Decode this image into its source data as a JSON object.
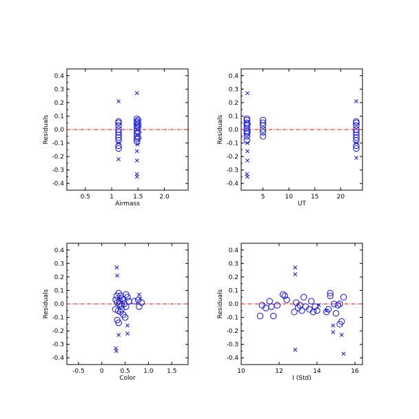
{
  "chart_data": [
    {
      "type": "scatter",
      "xlabel": "Airmass",
      "ylabel": "Residuals",
      "xlim": [
        0.15,
        2.45
      ],
      "ylim": [
        -0.45,
        0.45
      ],
      "xticks": [
        0.5,
        1.0,
        1.5,
        2.0
      ],
      "xticklabels": [
        "0.5",
        "1",
        "1.5",
        "2.0"
      ],
      "yticks": [
        -0.4,
        -0.3,
        -0.2,
        -0.1,
        0.0,
        0.1,
        0.2,
        0.3,
        0.4
      ],
      "yticklabels": [
        "-0.4",
        "-0.3",
        "-0.2",
        "-0.1",
        "0.0",
        "0.1",
        "0.2",
        "0.3",
        "0.4"
      ],
      "zero_line": 0,
      "series": [
        {
          "marker": "circle",
          "points": [
            [
              1.13,
              0.06
            ],
            [
              1.13,
              0.05
            ],
            [
              1.13,
              0.03
            ],
            [
              1.13,
              0.0
            ],
            [
              1.13,
              -0.02
            ],
            [
              1.13,
              -0.04
            ],
            [
              1.13,
              -0.06
            ],
            [
              1.13,
              -0.08
            ],
            [
              1.13,
              -0.12
            ],
            [
              1.13,
              -0.14
            ],
            [
              1.48,
              0.08
            ],
            [
              1.48,
              0.06
            ],
            [
              1.48,
              0.05
            ],
            [
              1.48,
              0.03
            ],
            [
              1.48,
              0.01
            ],
            [
              1.48,
              -0.01
            ],
            [
              1.48,
              -0.03
            ],
            [
              1.48,
              -0.05
            ],
            [
              1.48,
              -0.07
            ],
            [
              1.48,
              -0.09
            ],
            [
              1.5,
              0.07
            ],
            [
              1.5,
              0.04
            ],
            [
              1.5,
              0.02
            ],
            [
              1.5,
              -0.02
            ],
            [
              1.5,
              -0.06
            ]
          ]
        },
        {
          "marker": "cross",
          "points": [
            [
              1.13,
              0.21
            ],
            [
              1.13,
              -0.22
            ],
            [
              1.13,
              -0.1
            ],
            [
              1.48,
              0.27
            ],
            [
              1.48,
              -0.16
            ],
            [
              1.48,
              -0.23
            ],
            [
              1.48,
              -0.33
            ],
            [
              1.48,
              -0.35
            ],
            [
              1.49,
              -0.11
            ]
          ]
        }
      ]
    },
    {
      "type": "scatter",
      "xlabel": "UT",
      "ylabel": "Residuals",
      "xlim": [
        0.8,
        24.2
      ],
      "ylim": [
        -0.45,
        0.45
      ],
      "xticks": [
        5,
        10,
        15,
        20
      ],
      "xticklabels": [
        "5",
        "10",
        "15",
        "20"
      ],
      "yticks": [
        -0.4,
        -0.3,
        -0.2,
        -0.1,
        0.0,
        0.1,
        0.2,
        0.3,
        0.4
      ],
      "yticklabels": [
        "-0.4",
        "-0.3",
        "-0.2",
        "-0.1",
        "0.0",
        "0.1",
        "0.2",
        "0.3",
        "0.4"
      ],
      "zero_line": 0,
      "series": [
        {
          "marker": "circle",
          "points": [
            [
              1.9,
              0.08
            ],
            [
              1.9,
              0.07
            ],
            [
              1.9,
              0.05
            ],
            [
              1.9,
              0.03
            ],
            [
              1.9,
              0.01
            ],
            [
              1.9,
              -0.01
            ],
            [
              1.9,
              -0.03
            ],
            [
              1.9,
              -0.05
            ],
            [
              1.9,
              -0.08
            ],
            [
              2.0,
              0.04
            ],
            [
              2.0,
              -0.02
            ],
            [
              5.0,
              0.07
            ],
            [
              5.0,
              0.05
            ],
            [
              5.0,
              0.03
            ],
            [
              5.0,
              0.0
            ],
            [
              5.0,
              -0.02
            ],
            [
              5.0,
              -0.05
            ],
            [
              23.0,
              0.06
            ],
            [
              23.0,
              0.05
            ],
            [
              23.0,
              0.03
            ],
            [
              23.0,
              0.0
            ],
            [
              23.0,
              -0.02
            ],
            [
              23.0,
              -0.04
            ],
            [
              23.0,
              -0.06
            ],
            [
              23.0,
              -0.08
            ],
            [
              23.0,
              -0.12
            ],
            [
              23.0,
              -0.14
            ]
          ]
        },
        {
          "marker": "cross",
          "points": [
            [
              2.0,
              0.27
            ],
            [
              2.0,
              -0.1
            ],
            [
              2.0,
              -0.16
            ],
            [
              2.0,
              -0.23
            ],
            [
              1.9,
              -0.33
            ],
            [
              2.0,
              -0.35
            ],
            [
              23.0,
              0.21
            ],
            [
              23.0,
              -0.21
            ],
            [
              23.0,
              -0.1
            ]
          ]
        }
      ]
    },
    {
      "type": "scatter",
      "xlabel": "Color",
      "ylabel": "Residuals",
      "xlim": [
        -0.75,
        1.85
      ],
      "ylim": [
        -0.45,
        0.45
      ],
      "xticks": [
        -0.5,
        0.0,
        0.5,
        1.0,
        1.5
      ],
      "xticklabels": [
        "-0.5",
        "0",
        "0.5",
        "1.0",
        "1.5"
      ],
      "yticks": [
        -0.4,
        -0.3,
        -0.2,
        -0.1,
        0.0,
        0.1,
        0.2,
        0.3,
        0.4
      ],
      "yticklabels": [
        "-0.4",
        "-0.3",
        "-0.2",
        "-0.1",
        "0.0",
        "0.1",
        "0.2",
        "0.3",
        "0.4"
      ],
      "zero_line": 0,
      "series": [
        {
          "marker": "circle",
          "points": [
            [
              0.32,
              0.06
            ],
            [
              0.36,
              0.08
            ],
            [
              0.4,
              0.06
            ],
            [
              0.44,
              0.04
            ],
            [
              0.3,
              0.03
            ],
            [
              0.33,
              0.01
            ],
            [
              0.38,
              0.0
            ],
            [
              0.42,
              -0.01
            ],
            [
              0.48,
              0.0
            ],
            [
              0.52,
              -0.02
            ],
            [
              0.29,
              -0.04
            ],
            [
              0.35,
              -0.05
            ],
            [
              0.4,
              -0.06
            ],
            [
              0.46,
              -0.08
            ],
            [
              0.33,
              -0.12
            ],
            [
              0.36,
              -0.14
            ],
            [
              0.5,
              -0.1
            ],
            [
              0.55,
              0.05
            ],
            [
              0.58,
              0.02
            ],
            [
              0.46,
              0.03
            ],
            [
              0.52,
              0.07
            ],
            [
              0.42,
              -0.04
            ],
            [
              0.38,
              0.02
            ],
            [
              0.7,
              0.02
            ],
            [
              0.78,
              0.03
            ],
            [
              0.8,
              -0.02
            ],
            [
              0.85,
              0.01
            ]
          ]
        },
        {
          "marker": "cross",
          "points": [
            [
              0.32,
              0.27
            ],
            [
              0.33,
              0.21
            ],
            [
              0.36,
              -0.23
            ],
            [
              0.55,
              -0.22
            ],
            [
              0.55,
              -0.16
            ],
            [
              0.3,
              -0.33
            ],
            [
              0.31,
              -0.35
            ],
            [
              0.8,
              0.07
            ],
            [
              0.82,
              0.04
            ]
          ]
        }
      ]
    },
    {
      "type": "scatter",
      "xlabel": "I (Std)",
      "ylabel": "Residuals",
      "xlim": [
        10.0,
        16.4
      ],
      "ylim": [
        -0.45,
        0.45
      ],
      "xticks": [
        10,
        12,
        14,
        16
      ],
      "xticklabels": [
        "10",
        "12",
        "14",
        "16"
      ],
      "yticks": [
        -0.4,
        -0.3,
        -0.2,
        -0.1,
        0.0,
        0.1,
        0.2,
        0.3,
        0.4
      ],
      "yticklabels": [
        "-0.4",
        "-0.3",
        "-0.2",
        "-0.1",
        "0.0",
        "0.1",
        "0.2",
        "0.3",
        "0.4"
      ],
      "zero_line": 0,
      "series": [
        {
          "marker": "circle",
          "points": [
            [
              11.0,
              -0.09
            ],
            [
              11.1,
              -0.01
            ],
            [
              11.3,
              -0.03
            ],
            [
              11.5,
              0.02
            ],
            [
              11.6,
              -0.02
            ],
            [
              11.7,
              -0.09
            ],
            [
              11.9,
              -0.01
            ],
            [
              12.2,
              0.07
            ],
            [
              12.3,
              0.06
            ],
            [
              12.4,
              0.03
            ],
            [
              12.8,
              -0.06
            ],
            [
              12.9,
              0.01
            ],
            [
              13.0,
              -0.03
            ],
            [
              13.1,
              -0.01
            ],
            [
              13.2,
              -0.05
            ],
            [
              13.3,
              0.05
            ],
            [
              13.4,
              -0.02
            ],
            [
              13.6,
              -0.04
            ],
            [
              13.7,
              0.02
            ],
            [
              13.8,
              -0.06
            ],
            [
              13.9,
              -0.02
            ],
            [
              14.0,
              -0.05
            ],
            [
              14.5,
              -0.06
            ],
            [
              14.6,
              -0.04
            ],
            [
              14.7,
              0.08
            ],
            [
              14.7,
              0.06
            ],
            [
              14.9,
              0.0
            ],
            [
              15.0,
              -0.07
            ],
            [
              15.1,
              -0.01
            ],
            [
              15.2,
              -0.15
            ],
            [
              15.3,
              -0.13
            ],
            [
              15.4,
              0.05
            ],
            [
              15.2,
              0.0
            ]
          ]
        },
        {
          "marker": "cross",
          "points": [
            [
              12.85,
              0.27
            ],
            [
              12.85,
              0.22
            ],
            [
              12.85,
              -0.34
            ],
            [
              14.1,
              -0.01
            ],
            [
              14.5,
              -0.05
            ],
            [
              14.85,
              -0.16
            ],
            [
              14.85,
              -0.21
            ],
            [
              15.3,
              -0.23
            ],
            [
              15.4,
              -0.37
            ]
          ]
        }
      ]
    }
  ]
}
